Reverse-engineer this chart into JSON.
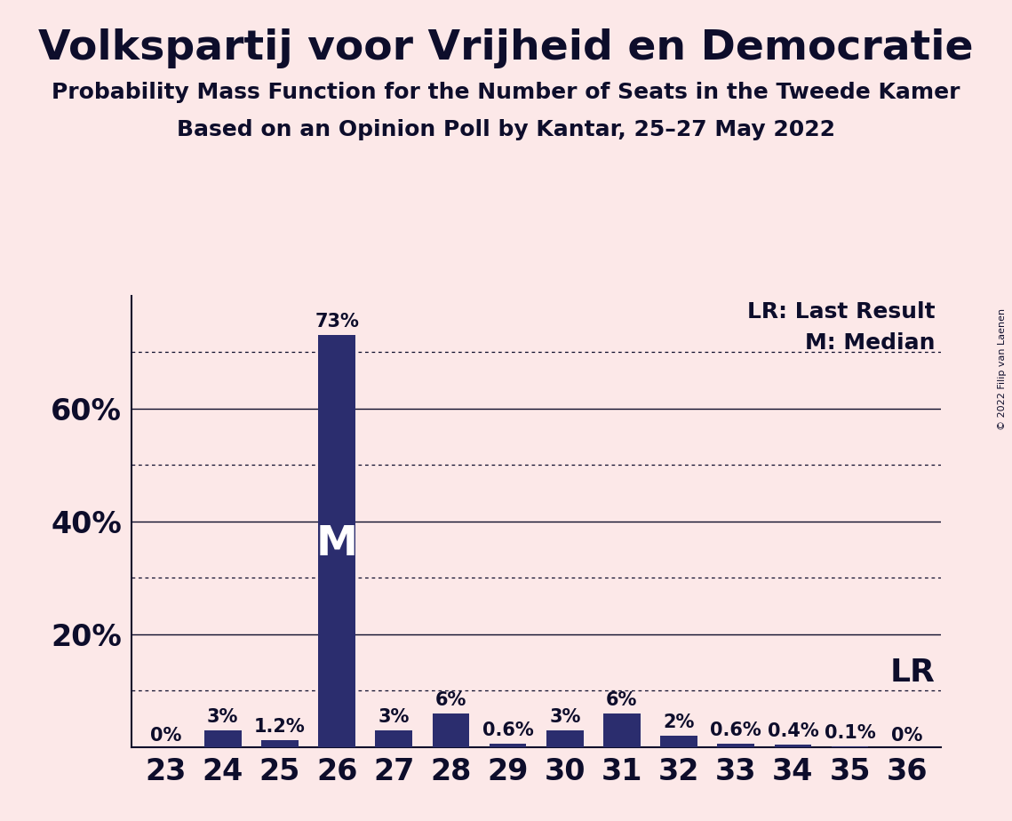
{
  "title": "Volkspartij voor Vrijheid en Democratie",
  "subtitle1": "Probability Mass Function for the Number of Seats in the Tweede Kamer",
  "subtitle2": "Based on an Opinion Poll by Kantar, 25–27 May 2022",
  "copyright": "© 2022 Filip van Laenen",
  "categories": [
    23,
    24,
    25,
    26,
    27,
    28,
    29,
    30,
    31,
    32,
    33,
    34,
    35,
    36
  ],
  "values": [
    0.0,
    3.0,
    1.2,
    73.0,
    3.0,
    6.0,
    0.6,
    3.0,
    6.0,
    2.0,
    0.6,
    0.4,
    0.1,
    0.0
  ],
  "labels": [
    "0%",
    "3%",
    "1.2%",
    "73%",
    "3%",
    "6%",
    "0.6%",
    "3%",
    "6%",
    "2%",
    "0.6%",
    "0.4%",
    "0.1%",
    "0%"
  ],
  "bar_color": "#2b2d6e",
  "background_color": "#fce8e8",
  "text_color": "#0d0d2b",
  "ylim": [
    0,
    80
  ],
  "solid_gridlines": [
    20,
    40,
    60
  ],
  "dotted_gridlines": [
    10,
    30,
    50,
    70
  ],
  "lr_dotted_line": 10,
  "median_bar": 26,
  "lr_seat": 33,
  "legend_lr": "LR: Last Result",
  "legend_m": "M: Median",
  "median_label": "M",
  "lr_label": "LR",
  "title_fontsize": 34,
  "subtitle_fontsize": 18,
  "label_fontsize": 15,
  "tick_fontsize": 24,
  "legend_fontsize": 18,
  "lr_fontsize": 26
}
